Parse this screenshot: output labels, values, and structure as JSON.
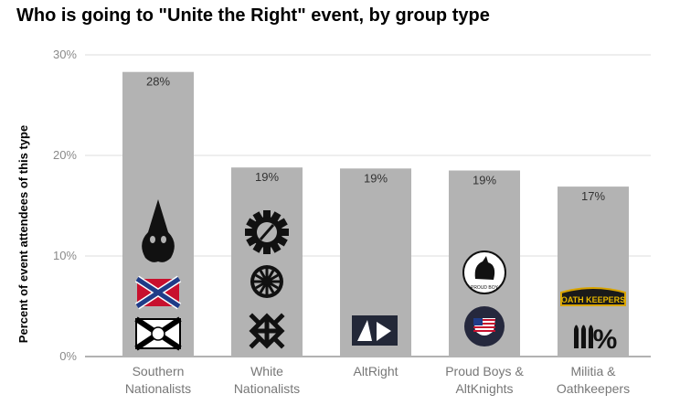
{
  "chart_data": {
    "type": "bar",
    "title": "Who is going to \"Unite the Right\" event, by group type",
    "ylabel": "Percent of event attendees of this type",
    "xlabel": "",
    "ylim": [
      0,
      30
    ],
    "yticks": [
      "0%",
      "10%",
      "20%",
      "30%"
    ],
    "grid": true,
    "categories": [
      [
        "Southern",
        "Nationalists"
      ],
      [
        "White",
        "Nationalists"
      ],
      [
        "AltRight"
      ],
      [
        "Proud Boys &",
        "AltKnights"
      ],
      [
        "Militia &",
        "Oathkeepers"
      ]
    ],
    "values": [
      28.3,
      18.8,
      18.7,
      18.5,
      16.9
    ],
    "value_labels": [
      "28%",
      "19%",
      "19%",
      "19%",
      "17%"
    ],
    "bar_color": "#b3b3b3",
    "icons": [
      [
        "kkk-hood-icon",
        "confederate-flag-icon",
        "florida-flag-icon"
      ],
      [
        "gear-icon",
        "black-sun-icon",
        "swastika-icon"
      ],
      [
        "altright-logo-icon"
      ],
      [
        "rooster-emblem-icon",
        "us-flag-shield-icon"
      ],
      [
        "oath-keepers-patch-icon",
        "three-percenters-icon"
      ]
    ],
    "icon_text": {
      "rooster_badge": "PROUD BOY",
      "oath_keepers_patch": "OATH KEEPERS"
    }
  }
}
